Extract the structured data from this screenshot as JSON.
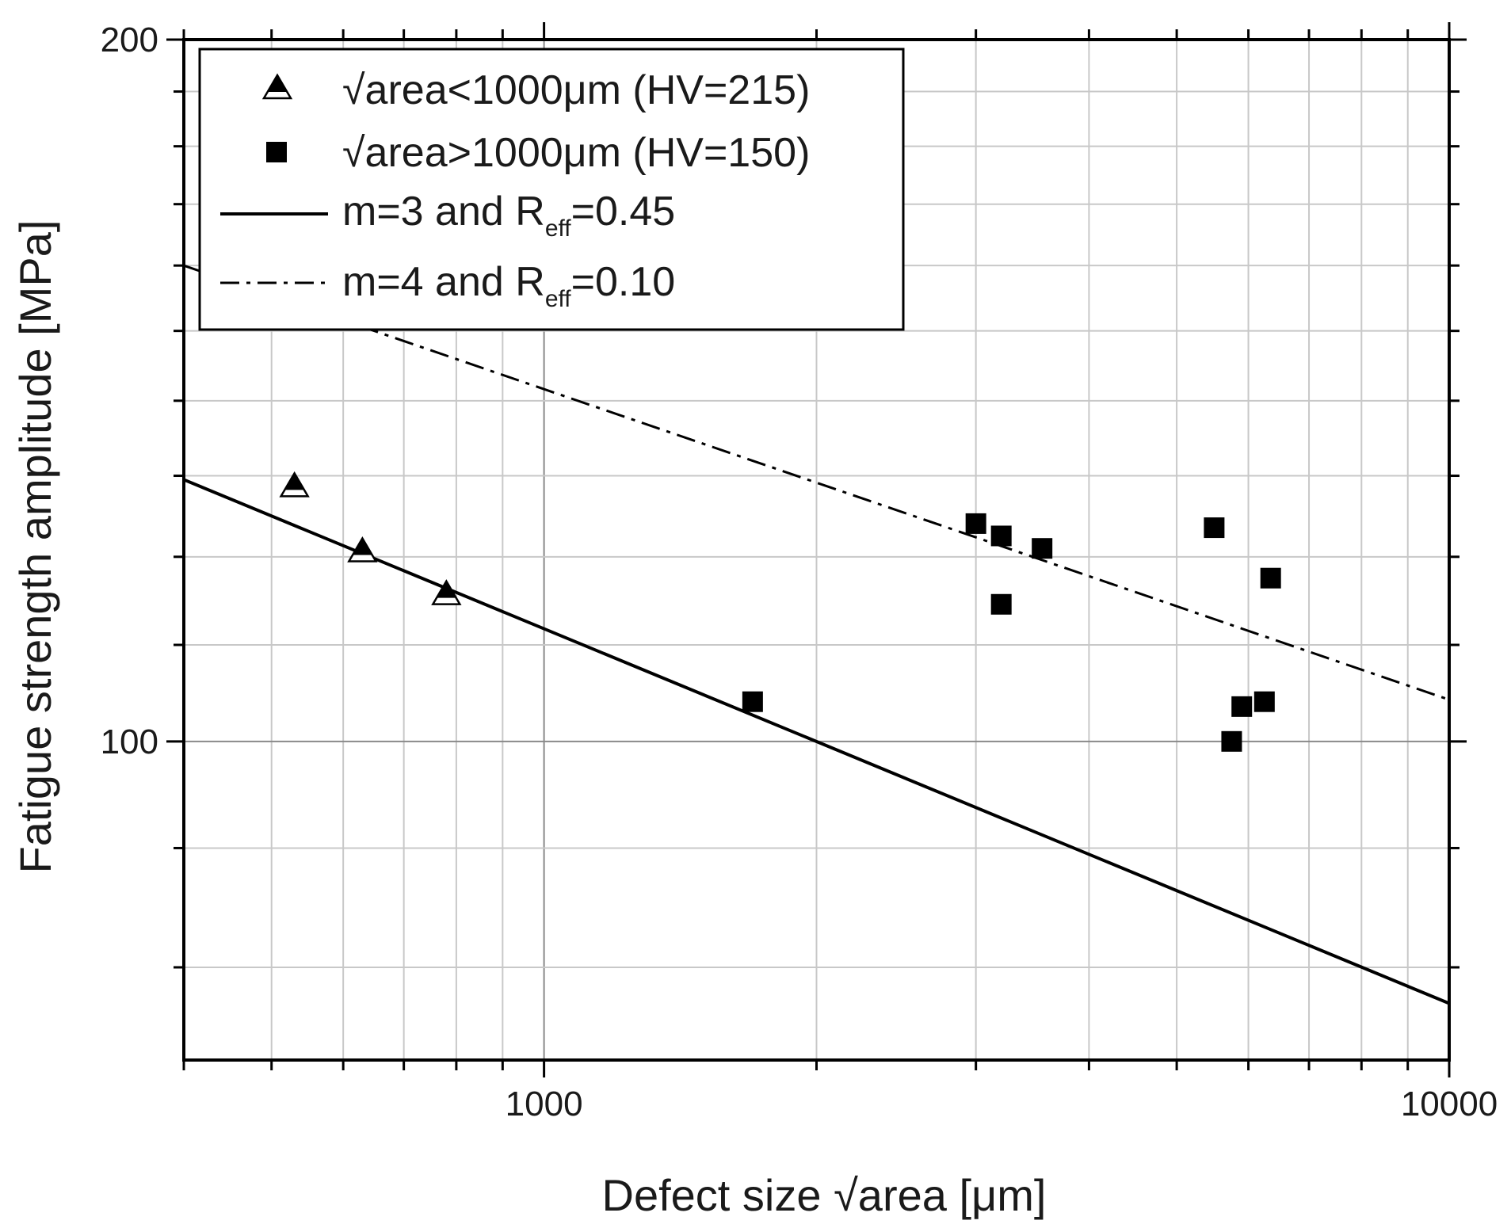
{
  "chart_data": {
    "type": "scatter",
    "title": "",
    "xlabel": "Defect size √area [μm]",
    "ylabel": "Fatigue strength amplitude [MPa]",
    "xscale": "log",
    "yscale": "log",
    "xlim": [
      400,
      10000
    ],
    "ylim": [
      73,
      200
    ],
    "x_ticks": [
      {
        "value": 1000,
        "label": "1000"
      },
      {
        "value": 10000,
        "label": "10000"
      }
    ],
    "y_ticks": [
      {
        "value": 100,
        "label": "100"
      },
      {
        "value": 200,
        "label": "200"
      }
    ],
    "grid": true,
    "legend_position": "top-left",
    "series": [
      {
        "name": "√area<1000μm (HV=215)",
        "kind": "scatter",
        "marker": "half-filled-triangle",
        "color": "#000000",
        "points": [
          {
            "x": 530,
            "y": 128.5
          },
          {
            "x": 630,
            "y": 120.5
          },
          {
            "x": 780,
            "y": 115.5
          }
        ]
      },
      {
        "name": "√area>1000μm (HV=150)",
        "kind": "scatter",
        "marker": "filled-square",
        "color": "#000000",
        "points": [
          {
            "x": 1700,
            "y": 104
          },
          {
            "x": 3000,
            "y": 124
          },
          {
            "x": 3200,
            "y": 122.5
          },
          {
            "x": 3200,
            "y": 114.5
          },
          {
            "x": 3550,
            "y": 121
          },
          {
            "x": 5500,
            "y": 123.5
          },
          {
            "x": 5750,
            "y": 100
          },
          {
            "x": 5900,
            "y": 103.5
          },
          {
            "x": 6250,
            "y": 104
          },
          {
            "x": 6350,
            "y": 117.5
          }
        ]
      },
      {
        "name": "m=3 and R",
        "name_sub": "eff",
        "name_tail": "=0.45",
        "kind": "line",
        "style": "solid",
        "color": "#000000",
        "points": [
          {
            "x": 400,
            "y": 129.5
          },
          {
            "x": 10000,
            "y": 77.2
          }
        ]
      },
      {
        "name": "m=4 and R",
        "name_sub": "eff",
        "name_tail": "=0.10",
        "kind": "line",
        "style": "dash-dot",
        "color": "#000000",
        "points": [
          {
            "x": 400,
            "y": 160
          },
          {
            "x": 10000,
            "y": 104.2
          }
        ]
      }
    ]
  }
}
